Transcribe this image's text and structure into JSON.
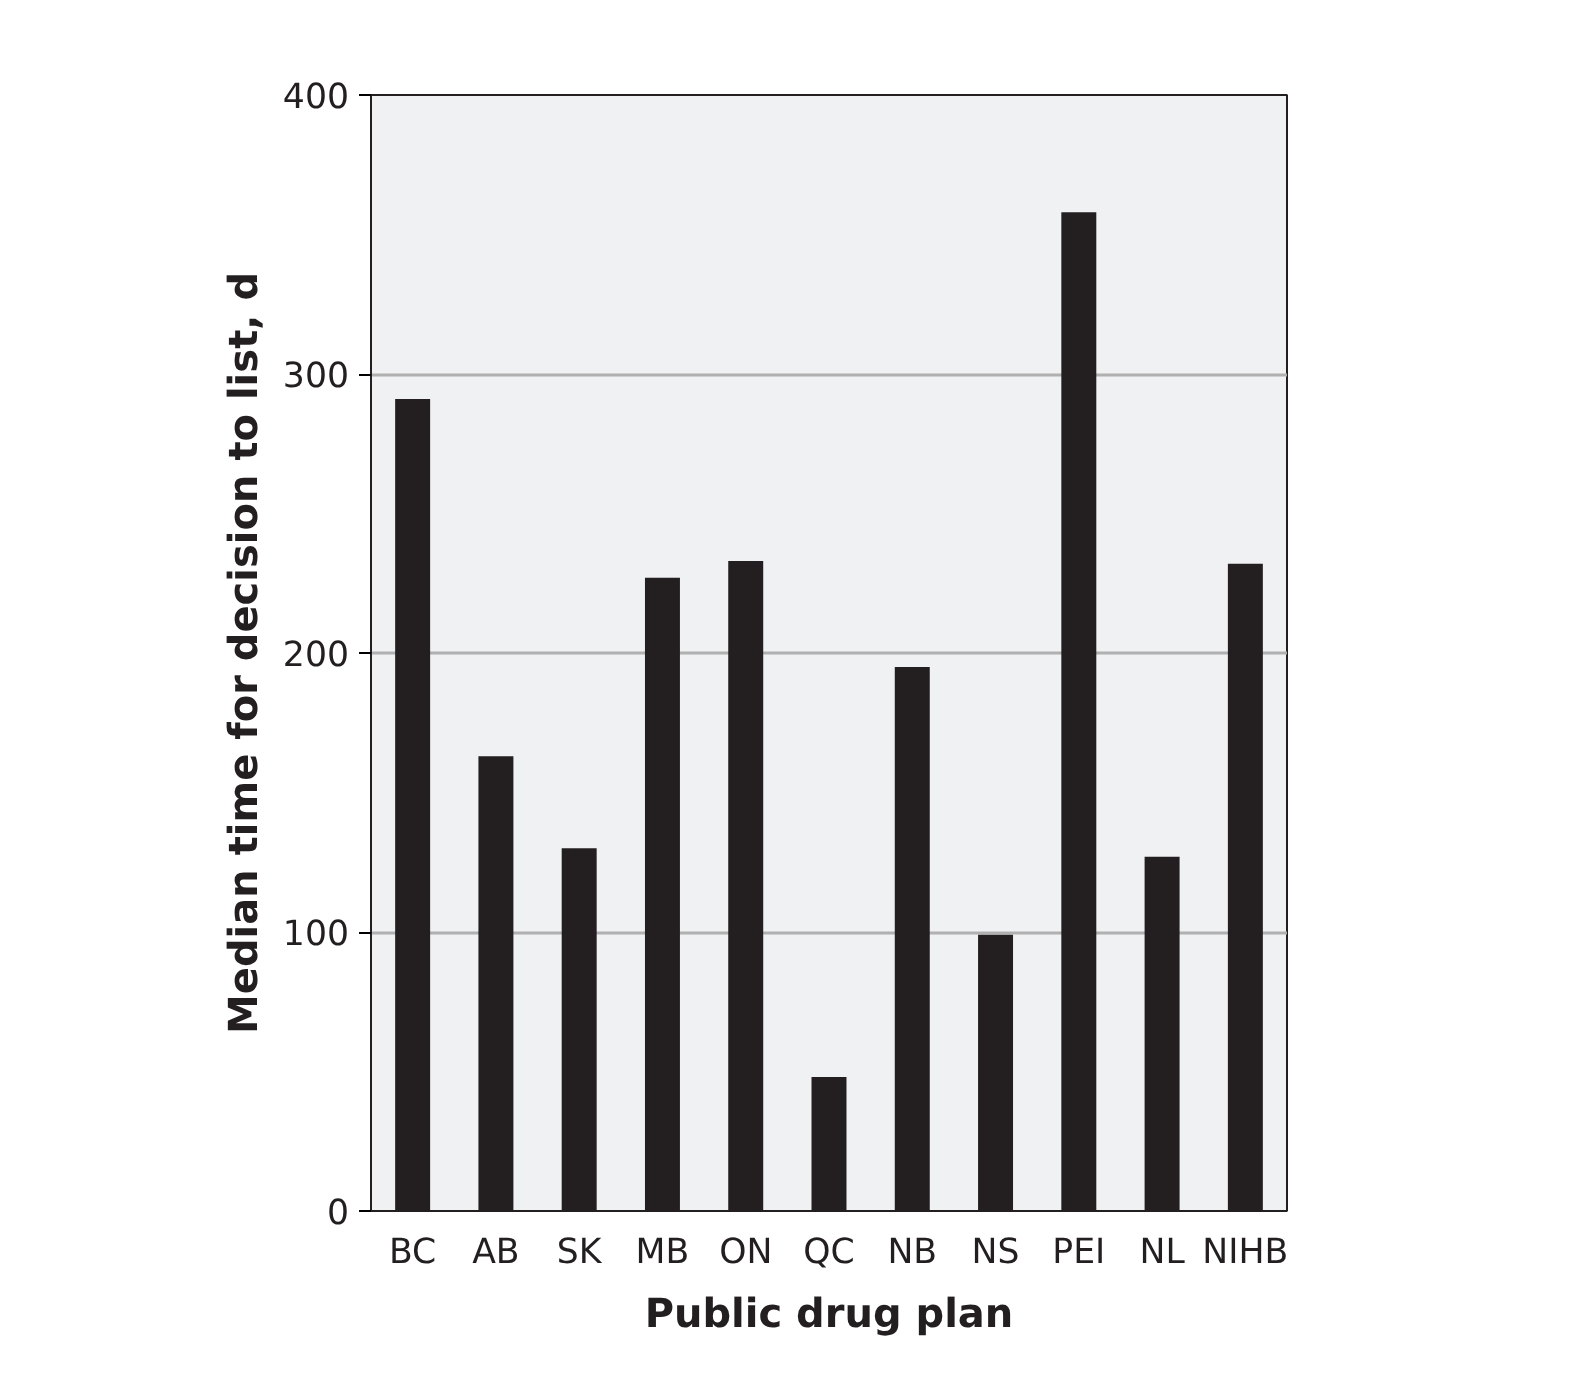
{
  "chart_data": {
    "type": "bar",
    "xlabel": "Public drug plan",
    "ylabel": "Median time for decision to list, d",
    "categories": [
      "BC",
      "AB",
      "SK",
      "MB",
      "ON",
      "QC",
      "NB",
      "NS",
      "PEI",
      "NL",
      "NIHB"
    ],
    "values": [
      291,
      163,
      130,
      227,
      233,
      48,
      195,
      99,
      358,
      127,
      232
    ],
    "color": "#231f20",
    "ylim": [
      0,
      400
    ],
    "yticks": [
      0,
      100,
      200,
      300,
      400
    ],
    "grid": "y"
  }
}
